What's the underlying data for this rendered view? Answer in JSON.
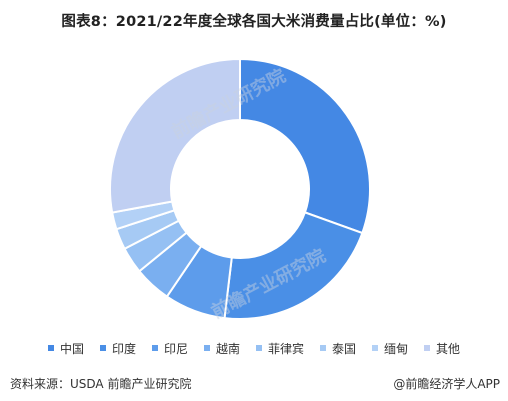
{
  "title": "图表8：2021/22年度全球各国大米消费量占比(单位：%)",
  "source": "资料来源：USDA 前瞻产业研究院",
  "brand": "@前瞻经济学人APP",
  "watermark": "前瞻产业研究院",
  "chart_data": {
    "type": "pie",
    "title": "图表8：2021/22年度全球各国大米消费量占比(单位：%)",
    "donut": true,
    "legend_position": "bottom",
    "categories": [
      "中国",
      "印度",
      "印尼",
      "越南",
      "菲律宾",
      "泰国",
      "缅甸",
      "其他"
    ],
    "values": [
      30.5,
      21.4,
      7.6,
      4.6,
      3.3,
      2.6,
      2.1,
      27.9
    ],
    "colors": [
      "#4488e4",
      "#4a8fe6",
      "#5d9ceb",
      "#7aaff0",
      "#95c0f3",
      "#a6caf4",
      "#b3d1f6",
      "#c0cff2"
    ]
  }
}
